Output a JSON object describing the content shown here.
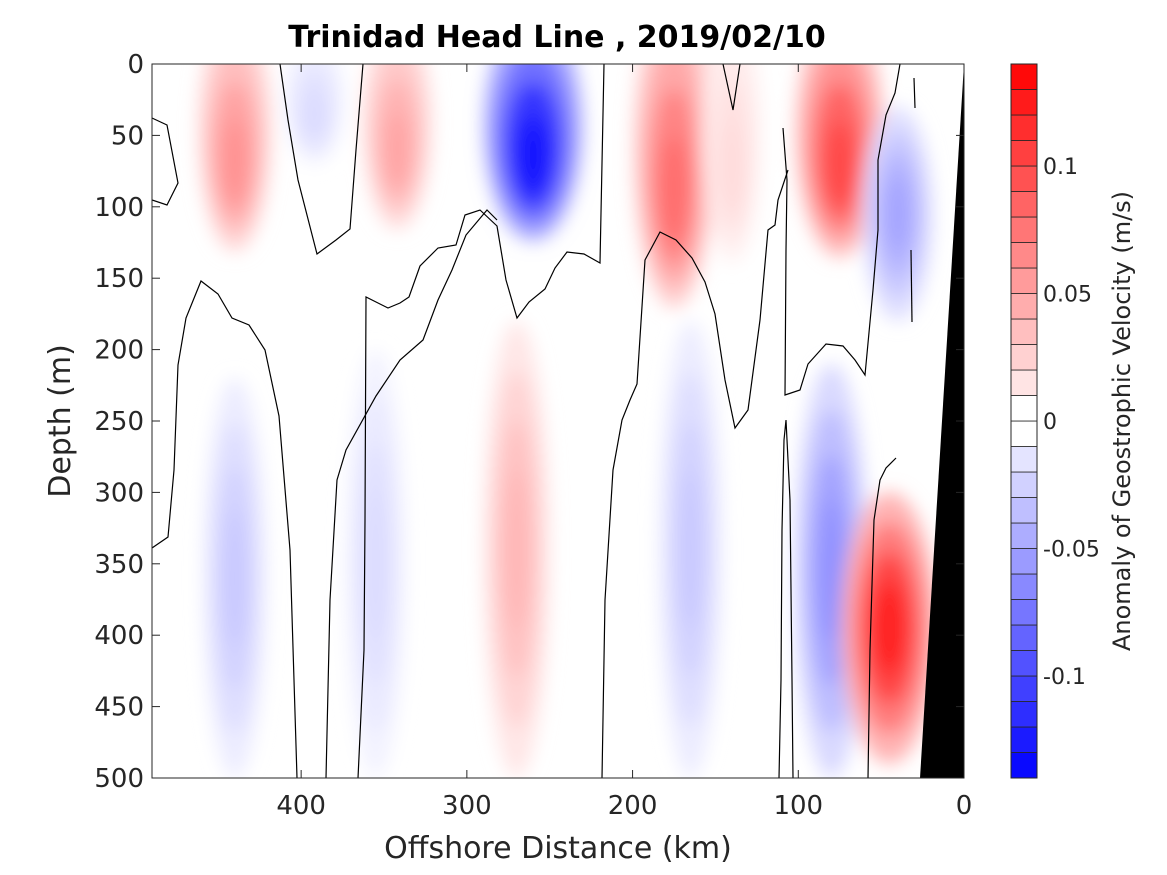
{
  "chart_data": {
    "type": "heatmap",
    "title": "Trinidad Head Line , 2019/02/10",
    "xlabel": "Offshore Distance (km)",
    "ylabel": "Depth (m)",
    "colorbar_label": "Anomaly of Geostrophic Velocity (m/s)",
    "x_ticks": [
      400,
      300,
      200,
      100,
      0
    ],
    "x_tick_labels": [
      "400",
      "300",
      "200",
      "100",
      "0"
    ],
    "y_ticks": [
      0,
      50,
      100,
      150,
      200,
      250,
      300,
      350,
      400,
      450,
      500
    ],
    "y_tick_labels": [
      "0",
      "50",
      "100",
      "150",
      "200",
      "250",
      "300",
      "350",
      "400",
      "450",
      "500"
    ],
    "colorbar_ticks": [
      0.1,
      0.05,
      0,
      -0.05,
      -0.1
    ],
    "colorbar_tick_labels": [
      "0.1",
      "0.05",
      "0",
      "-0.05",
      "-0.1"
    ],
    "colorbar_range": [
      -0.14,
      0.14
    ],
    "colorbar_levels": 28,
    "xlim": [
      490,
      0
    ],
    "ylim": [
      0,
      500
    ],
    "x_reversed": true,
    "y_reversed": true,
    "colormap": {
      "negative": "#0000ff",
      "zero": "#ffffff",
      "positive": "#ff0000"
    },
    "bathymetry_color": "#000000",
    "anomaly_features": [
      {
        "sign": "positive",
        "x_center": 440,
        "depth_top": 0,
        "depth_bottom": 170,
        "peak": 0.06
      },
      {
        "sign": "negative",
        "x_center": 392,
        "depth_top": 0,
        "depth_bottom": 90,
        "peak": -0.02
      },
      {
        "sign": "positive",
        "x_center": 342,
        "depth_top": 0,
        "depth_bottom": 150,
        "peak": 0.05
      },
      {
        "sign": "negative",
        "x_center": 260,
        "depth_top": 0,
        "depth_bottom": 160,
        "peak": -0.13
      },
      {
        "sign": "positive",
        "x_center": 175,
        "depth_top": 0,
        "depth_bottom": 220,
        "peak": 0.08
      },
      {
        "sign": "positive",
        "x_center": 140,
        "depth_top": 0,
        "depth_bottom": 180,
        "peak": 0.02
      },
      {
        "sign": "positive",
        "x_center": 75,
        "depth_top": 0,
        "depth_bottom": 175,
        "peak": 0.1
      },
      {
        "sign": "negative",
        "x_center": 40,
        "depth_top": 30,
        "depth_bottom": 180,
        "peak": -0.05
      },
      {
        "sign": "negative",
        "x_center": 440,
        "depth_top": 220,
        "depth_bottom": 500,
        "peak": -0.03
      },
      {
        "sign": "negative",
        "x_center": 355,
        "depth_top": 200,
        "depth_bottom": 500,
        "peak": -0.02
      },
      {
        "sign": "positive",
        "x_center": 270,
        "depth_top": 180,
        "depth_bottom": 500,
        "peak": 0.04
      },
      {
        "sign": "negative",
        "x_center": 165,
        "depth_top": 180,
        "depth_bottom": 500,
        "peak": -0.03
      },
      {
        "sign": "negative",
        "x_center": 80,
        "depth_top": 210,
        "depth_bottom": 500,
        "peak": -0.06
      },
      {
        "sign": "positive",
        "x_center": 45,
        "depth_top": 300,
        "depth_bottom": 490,
        "peak": 0.12
      }
    ]
  }
}
